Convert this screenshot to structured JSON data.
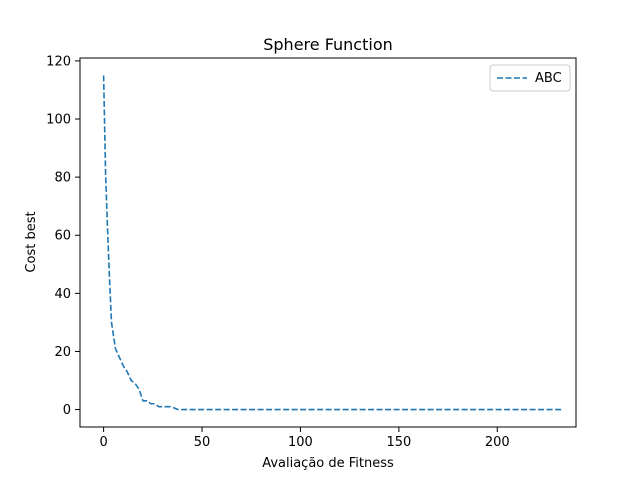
{
  "chart_data": {
    "type": "line",
    "title": "Sphere Function",
    "xlabel": "Avaliação de Fitness",
    "ylabel": "Cost best",
    "xlim": [
      -12,
      240
    ],
    "ylim": [
      -6,
      121
    ],
    "xticks": [
      0,
      50,
      100,
      150,
      200
    ],
    "yticks": [
      0,
      20,
      40,
      60,
      80,
      100,
      120
    ],
    "grid": false,
    "legend_position": "top-right",
    "series": [
      {
        "name": "ABC",
        "color": "#1f77b4",
        "line_style": "dashed",
        "x": [
          0,
          1,
          2,
          3,
          4,
          6,
          8,
          10,
          12,
          14,
          16,
          18,
          20,
          22,
          24,
          26,
          28,
          30,
          32,
          34,
          36,
          38,
          40,
          50,
          100,
          150,
          200,
          233
        ],
        "y": [
          115,
          81,
          62,
          45,
          30,
          21,
          18,
          15,
          13,
          10,
          9,
          7,
          3,
          3,
          2,
          2,
          1,
          1,
          1,
          1,
          0.5,
          0,
          0,
          0,
          0,
          0,
          0,
          0
        ]
      }
    ]
  }
}
